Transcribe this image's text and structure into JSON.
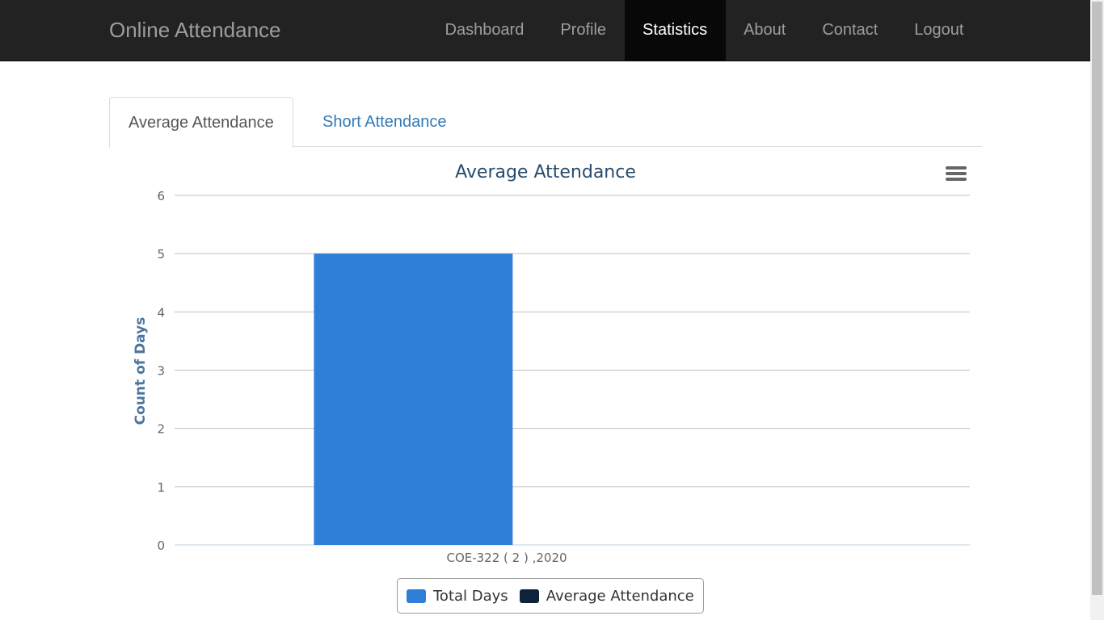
{
  "navbar": {
    "brand": "Online Attendance",
    "items": [
      {
        "label": "Dashboard",
        "active": false
      },
      {
        "label": "Profile",
        "active": false
      },
      {
        "label": "Statistics",
        "active": true
      },
      {
        "label": "About",
        "active": false
      },
      {
        "label": "Contact",
        "active": false
      },
      {
        "label": "Logout",
        "active": false
      }
    ]
  },
  "tabs": {
    "active_label": "Average Attendance",
    "inactive_label": "Short Attendance"
  },
  "chart_data": {
    "type": "bar",
    "title": "Average Attendance",
    "ylabel": "Count of Days",
    "xlabel": "",
    "categories": [
      "COE-322 ( 2 ) ,2020"
    ],
    "series": [
      {
        "name": "Total Days",
        "values": [
          5
        ],
        "color": "#2f7ed8"
      },
      {
        "name": "Average Attendance",
        "values": [
          0
        ],
        "color": "#0d233a"
      }
    ],
    "ylim": [
      0,
      6
    ],
    "yticks": [
      "0",
      "1",
      "2",
      "3",
      "4",
      "5",
      "6"
    ],
    "grid": true,
    "legend": "bottom-center",
    "menu_icon": "hamburger-menu-icon"
  },
  "colors": {
    "navbar_bg": "#222222",
    "nav_active_bg": "#080808",
    "link": "#337ab7",
    "title": "#274b6d",
    "axis_label": "#4d759e"
  }
}
